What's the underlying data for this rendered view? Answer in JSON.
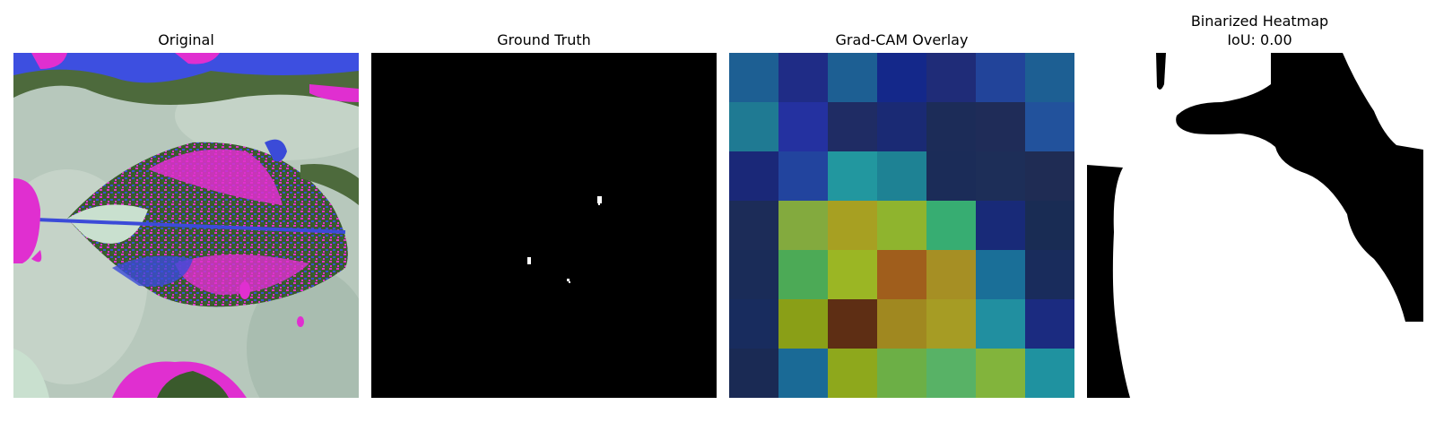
{
  "panels": [
    {
      "title": "Original"
    },
    {
      "title": "Ground Truth"
    },
    {
      "title": "Grad-CAM Overlay"
    },
    {
      "title_line1": "Binarized Heatmap",
      "title_line2": "IoU: 0.00"
    }
  ],
  "gradcam_colors": [
    [
      "#1d5f93",
      "#1f2c86",
      "#1d5f93",
      "#14288a",
      "#1f2c78",
      "#22449a",
      "#1d5f93"
    ],
    [
      "#1f7a93",
      "#2431a0",
      "#1f2c64",
      "#1a2a74",
      "#1c2c58",
      "#1f2c58",
      "#22529c"
    ],
    [
      "#1a2878",
      "#22449e",
      "#22979f",
      "#1e8294",
      "#1b2c58",
      "#1d2e58",
      "#1f2c54"
    ],
    [
      "#1c2c58",
      "#83aa3e",
      "#a7a022",
      "#8fb42e",
      "#37ad72",
      "#182a78",
      "#192c54"
    ],
    [
      "#1a2c58",
      "#4caa56",
      "#9bb624",
      "#a05e1c",
      "#a68f24",
      "#1a6f98",
      "#192c5c"
    ],
    [
      "#182c5e",
      "#8a9f17",
      "#5e2e14",
      "#a08820",
      "#a69c24",
      "#218fa0",
      "#1b2b80"
    ],
    [
      "#1a2a54",
      "#1a6a96",
      "#8ea81c",
      "#6caf46",
      "#58b266",
      "#82b43c",
      "#1f92a0"
    ]
  ]
}
